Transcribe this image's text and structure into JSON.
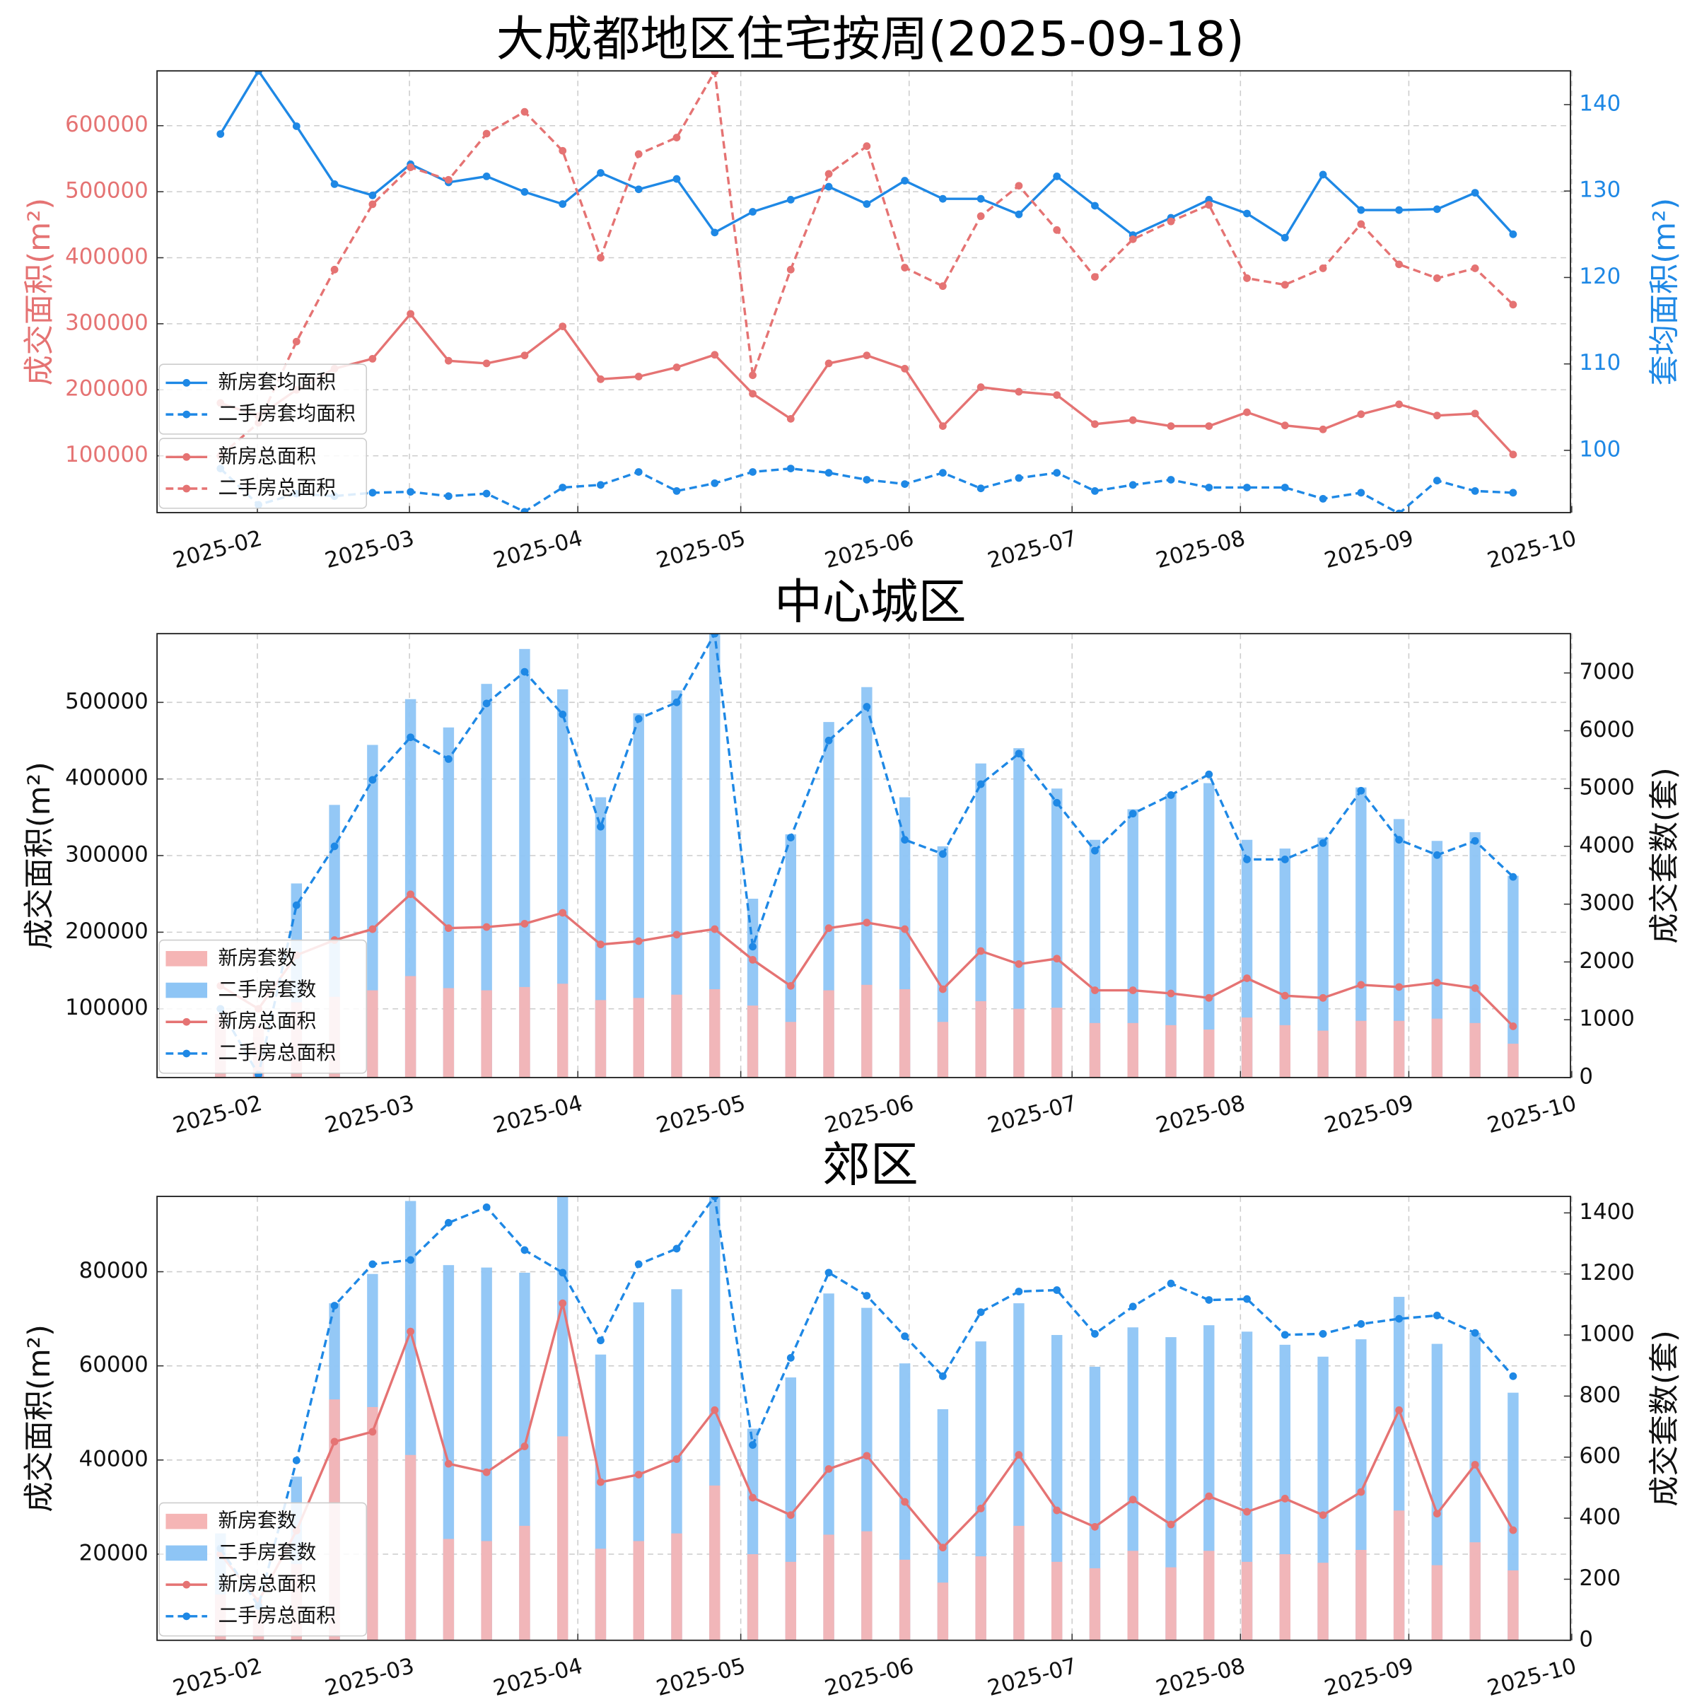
{
  "chart_data": [
    {
      "type": "line",
      "title": "大成都地区住宅按周(2025-09-18)",
      "ylabel": "成交面积(m²)",
      "y2label": "套均面积(m²)",
      "ylabel_color": "#e57373",
      "y2label_color": "#1e88e5",
      "legend_split": true,
      "grid": true,
      "legend": "lower left",
      "categories": [
        null,
        null,
        null,
        null,
        null,
        null,
        null,
        null,
        null,
        null,
        null,
        null,
        null,
        null,
        null,
        null,
        null,
        null,
        null,
        null,
        null,
        null,
        null,
        null,
        null,
        null,
        null,
        null,
        null,
        null,
        null,
        null,
        null,
        null,
        null
      ],
      "xticks": [
        "2025-02",
        "2025-03",
        "2025-04",
        "2025-05",
        "2025-06",
        "2025-07",
        "2025-08",
        "2025-09",
        "2025-10"
      ],
      "ylim": [
        14000,
        683000
      ],
      "yticks": [
        100000,
        200000,
        300000,
        400000,
        500000,
        600000
      ],
      "y2lim": [
        92.8,
        143.9
      ],
      "y2ticks": [
        100,
        110,
        120,
        130,
        140
      ],
      "series": [
        {
          "name": "新房套均面积",
          "type": "line",
          "axis": "y2",
          "color": "#1e88e5",
          "dashed": false,
          "values": [
            136.6,
            143.9,
            137.5,
            130.8,
            129.5,
            133.1,
            131.0,
            131.7,
            129.9,
            128.5,
            132.1,
            130.2,
            131.4,
            125.2,
            127.6,
            129.0,
            130.5,
            128.5,
            131.2,
            129.1,
            129.1,
            127.3,
            131.7,
            128.3,
            124.9,
            126.9,
            129.0,
            127.4,
            124.6,
            131.9,
            127.8,
            127.8,
            127.9,
            129.8,
            125.0
          ]
        },
        {
          "name": "二手房套均面积",
          "type": "line",
          "axis": "y2",
          "color": "#1e88e5",
          "dashed": true,
          "values": [
            97.9,
            93.7,
            95.0,
            94.7,
            95.1,
            95.2,
            94.7,
            95.0,
            92.9,
            95.7,
            96.0,
            97.5,
            95.3,
            96.2,
            97.5,
            97.9,
            97.4,
            96.6,
            96.1,
            97.4,
            95.6,
            96.8,
            97.4,
            95.3,
            96.0,
            96.6,
            95.7,
            95.7,
            95.7,
            94.4,
            95.1,
            92.7,
            96.5,
            95.3,
            95.1
          ]
        },
        {
          "name": "新房总面积",
          "type": "line",
          "axis": "y",
          "color": "#e57373",
          "dashed": false,
          "values": [
            180000,
            160000,
            200000,
            232000,
            247000,
            315000,
            244000,
            240000,
            252000,
            296000,
            216000,
            220000,
            234000,
            253000,
            194000,
            156000,
            240000,
            252000,
            232000,
            145000,
            204000,
            197000,
            192000,
            148000,
            154000,
            145000,
            145000,
            166000,
            146000,
            140000,
            163000,
            178000,
            161000,
            164000,
            102000
          ]
        },
        {
          "name": "二手房总面积",
          "type": "line",
          "axis": "y",
          "color": "#e57373",
          "dashed": true,
          "values": [
            100000,
            150000,
            273000,
            382000,
            481000,
            537000,
            518000,
            588000,
            621000,
            562000,
            400000,
            557000,
            582000,
            682000,
            222000,
            382000,
            527000,
            569000,
            385000,
            357000,
            463000,
            509000,
            442000,
            371000,
            428000,
            455000,
            480000,
            369000,
            359000,
            384000,
            451000,
            390000,
            369000,
            384000,
            329000
          ]
        }
      ]
    },
    {
      "type": "combo",
      "title": "中心城区",
      "ylabel": "成交面积(m²)",
      "y2label": "成交套数(套)",
      "grid": true,
      "legend": "lower left",
      "categories": [
        null,
        null,
        null,
        null,
        null,
        null,
        null,
        null,
        null,
        null,
        null,
        null,
        null,
        null,
        null,
        null,
        null,
        null,
        null,
        null,
        null,
        null,
        null,
        null,
        null,
        null,
        null,
        null,
        null,
        null,
        null,
        null,
        null,
        null,
        null
      ],
      "xticks": [
        "2025-02",
        "2025-03",
        "2025-04",
        "2025-05",
        "2025-06",
        "2025-07",
        "2025-08",
        "2025-09",
        "2025-10"
      ],
      "ylim": [
        10300,
        589700
      ],
      "yticks": [
        100000,
        200000,
        300000,
        400000,
        500000
      ],
      "y2lim": [
        0,
        7680
      ],
      "y2ticks": [
        0,
        1000,
        2000,
        3000,
        4000,
        5000,
        6000,
        7000
      ],
      "series": [
        {
          "name": "新房套数",
          "type": "bar",
          "axis": "y2",
          "color": "#f5b5b5",
          "values": [
            1100,
            900,
            1300,
            1396,
            1509,
            1755,
            1547,
            1509,
            1566,
            1623,
            1340,
            1377,
            1434,
            1528,
            1245,
            962,
            1509,
            1604,
            1528,
            962,
            1321,
            1189,
            1208,
            943,
            943,
            906,
            830,
            1038,
            906,
            811,
            981,
            981,
            1019,
            943,
            585
          ]
        },
        {
          "name": "二手房套数",
          "type": "bar",
          "axis": "y2",
          "color": "#8ec5f5",
          "values": [
            900,
            700,
            3358,
            4717,
            5755,
            6547,
            6057,
            6811,
            7415,
            6717,
            4849,
            6302,
            6698,
            7700,
            3094,
            4208,
            6151,
            6755,
            4849,
            4000,
            5434,
            5698,
            5000,
            4113,
            4642,
            4906,
            5094,
            4113,
            3962,
            4151,
            5019,
            4472,
            4094,
            4245,
            3491
          ]
        },
        {
          "name": "新房总面积",
          "type": "line",
          "axis": "y",
          "color": "#e57373",
          "dashed": false,
          "values": [
            130000,
            100000,
            170000,
            189700,
            204000,
            249500,
            205300,
            206800,
            211000,
            225300,
            184000,
            188300,
            196800,
            204000,
            164000,
            129900,
            205300,
            212500,
            204000,
            125600,
            175400,
            158400,
            165500,
            124200,
            124200,
            120000,
            114200,
            139900,
            117100,
            114200,
            131300,
            128500,
            134200,
            127000,
            77200
          ]
        },
        {
          "name": "二手房总面积",
          "type": "line",
          "axis": "y",
          "color": "#1e88e5",
          "dashed": true,
          "values": [
            100000,
            14000,
            235200,
            312100,
            398900,
            454400,
            426000,
            498600,
            539900,
            484300,
            337700,
            478600,
            500000,
            589700,
            181100,
            323500,
            450200,
            494300,
            320600,
            302100,
            393200,
            433100,
            369000,
            306400,
            354800,
            379000,
            406000,
            295000,
            295000,
            316400,
            384700,
            320600,
            300700,
            319200,
            272200
          ]
        }
      ]
    },
    {
      "type": "combo",
      "title": "郊区",
      "ylabel": "成交面积(m²)",
      "y2label": "成交套数(套)",
      "grid": true,
      "legend": "lower left",
      "categories": [
        null,
        null,
        null,
        null,
        null,
        null,
        null,
        null,
        null,
        null,
        null,
        null,
        null,
        null,
        null,
        null,
        null,
        null,
        null,
        null,
        null,
        null,
        null,
        null,
        null,
        null,
        null,
        null,
        null,
        null,
        null,
        null,
        null,
        null,
        null
      ],
      "xticks": [
        "2025-02",
        "2025-03",
        "2025-04",
        "2025-05",
        "2025-06",
        "2025-07",
        "2025-08",
        "2025-09",
        "2025-10"
      ],
      "ylim": [
        1700,
        96000
      ],
      "yticks": [
        20000,
        40000,
        60000,
        80000
      ],
      "y2lim": [
        0,
        1454
      ],
      "y2ticks": [
        0,
        200,
        400,
        600,
        800,
        1000,
        1200,
        1400
      ],
      "series": [
        {
          "name": "新房套数",
          "type": "bar",
          "axis": "y2",
          "color": "#f5b5b5",
          "values": [
            150,
            100,
            250,
            789,
            764,
            607,
            332,
            325,
            375,
            668,
            300,
            325,
            350,
            507,
            282,
            257,
            346,
            357,
            264,
            189,
            275,
            375,
            257,
            236,
            293,
            239,
            293,
            257,
            282,
            254,
            296,
            425,
            246,
            321,
            229
          ]
        },
        {
          "name": "二手房套数",
          "type": "bar",
          "axis": "y2",
          "color": "#8ec5f5",
          "values": [
            350,
            100,
            536,
            1104,
            1200,
            1439,
            1229,
            1221,
            1204,
            1460,
            936,
            1107,
            1150,
            1460,
            693,
            861,
            1136,
            1089,
            907,
            757,
            979,
            1104,
            1000,
            896,
            1025,
            993,
            1032,
            1011,
            968,
            929,
            986,
            1125,
            971,
            1007,
            811
          ]
        },
        {
          "name": "新房总面积",
          "type": "line",
          "axis": "y",
          "color": "#e57373",
          "dashed": false,
          "values": [
            20000,
            10000,
            25000,
            43900,
            46000,
            67300,
            39200,
            37400,
            42900,
            73300,
            35300,
            36900,
            40200,
            50600,
            32000,
            28300,
            38100,
            40900,
            31100,
            21400,
            29700,
            41100,
            29300,
            25800,
            31600,
            26300,
            32300,
            29000,
            31800,
            28300,
            33200,
            50600,
            28600,
            39000,
            25100
          ]
        },
        {
          "name": "二手房总面积",
          "type": "line",
          "axis": "y",
          "color": "#1e88e5",
          "dashed": true,
          "values": [
            21200,
            9000,
            39900,
            72800,
            81600,
            82500,
            90400,
            93700,
            84600,
            79800,
            65400,
            81600,
            84900,
            96000,
            43200,
            61700,
            79800,
            74900,
            66300,
            57800,
            71400,
            75800,
            76100,
            66800,
            72600,
            77500,
            74000,
            74200,
            66600,
            66800,
            68900,
            70000,
            70700,
            67000,
            57800
          ]
        }
      ]
    }
  ]
}
